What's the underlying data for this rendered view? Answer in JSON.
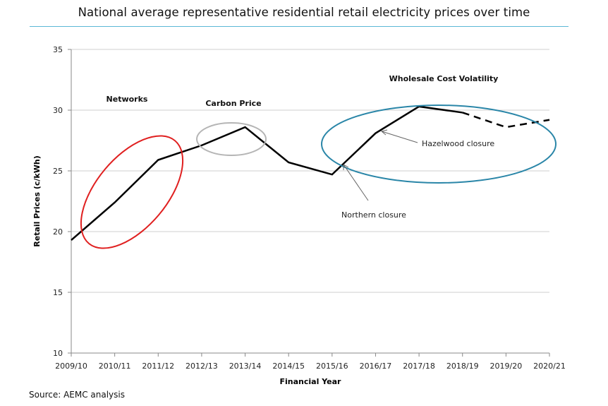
{
  "chart_data": {
    "type": "line",
    "title": "National average representative residential retail electricity prices over time",
    "xlabel": "Financial Year",
    "ylabel": "Retail Prices (c/kWh)",
    "ylim": [
      10,
      35
    ],
    "yticks": [
      10,
      15,
      20,
      25,
      30,
      35
    ],
    "grid": "horizontal",
    "categories": [
      "2009/10",
      "2010/11",
      "2011/12",
      "2012/13",
      "2013/14",
      "2014/15",
      "2015/16",
      "2016/17",
      "2017/18",
      "2018/19",
      "2019/20",
      "2020/21"
    ],
    "series": [
      {
        "style": "solid",
        "color": "#000000",
        "values": [
          19.3,
          22.4,
          25.9,
          27.1,
          28.6,
          25.7,
          24.7,
          28.1,
          30.3,
          29.8,
          null,
          null
        ]
      },
      {
        "style": "dashed",
        "color": "#000000",
        "values": [
          null,
          null,
          null,
          null,
          null,
          null,
          null,
          null,
          null,
          29.8,
          28.6,
          29.2
        ]
      }
    ],
    "annotations": [
      {
        "text": "Networks",
        "ellipse_color": "#e02020"
      },
      {
        "text": "Carbon Price",
        "ellipse_color": "#b5b5b5"
      },
      {
        "text": "Wholesale Cost Volatility",
        "ellipse_color": "#2a86a8"
      },
      {
        "text": "Hazelwood closure"
      },
      {
        "text": "Northern closure"
      }
    ]
  },
  "source": "Source: AEMC analysis"
}
